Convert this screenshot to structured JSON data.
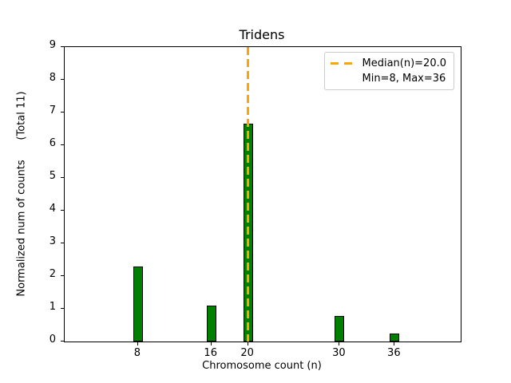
{
  "chart_data": {
    "type": "bar",
    "title": "Tridens",
    "xlabel": "Chromosome count (n)",
    "ylabel": "Normalized num of counts      (Total 11)",
    "categories": [
      8,
      16,
      20,
      30,
      36
    ],
    "values": [
      2.3,
      1.1,
      6.65,
      0.78,
      0.24
    ],
    "xticks": [
      8,
      16,
      20,
      30,
      36
    ],
    "yticks": [
      0,
      1,
      2,
      3,
      4,
      5,
      6,
      7,
      8,
      9
    ],
    "xlim": [
      0,
      43.2
    ],
    "ylim": [
      0,
      9
    ],
    "grid": false,
    "bar_color": "#008000",
    "bar_edge_color": "#000000",
    "bar_width_units": 1.05,
    "vline": {
      "x": 20,
      "color": "#FFA500",
      "style": "dashed",
      "linewidth": 2
    },
    "legend": {
      "position": "upper right",
      "entries": [
        {
          "label": "Median(n)=20.0",
          "handle": "orange-dashed-line"
        },
        {
          "label": "Min=8, Max=36",
          "handle": "none"
        }
      ]
    }
  }
}
